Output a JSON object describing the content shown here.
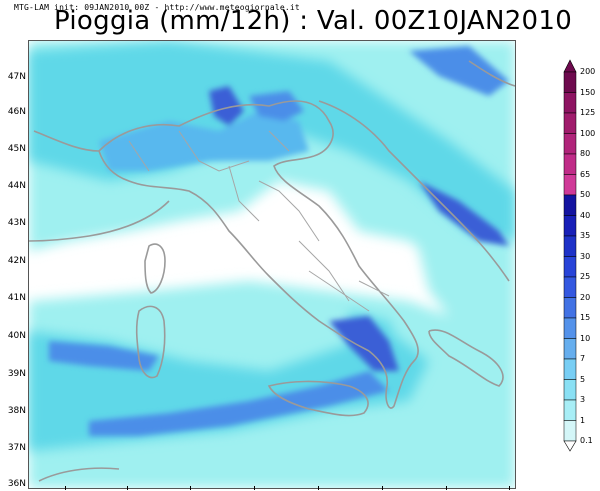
{
  "header": {
    "subtitle": "MTG-LAM init: 09JAN2010 00Z - http://www.meteogiornale.it",
    "title": "Pioggia (mm/12h) : Val. 00Z10JAN2010"
  },
  "map": {
    "latitude_labels": [
      "47N",
      "46N",
      "45N",
      "44N",
      "43N",
      "42N",
      "41N",
      "40N",
      "39N",
      "38N",
      "37N",
      "36N"
    ],
    "colors": {
      "land_outline": "#9a9a9a",
      "light_cyan": "#9ff0f0",
      "mid_cyan": "#5fd8e8",
      "light_blue": "#58b8ee",
      "mid_blue": "#4c8ee8",
      "deep_blue": "#3a5fd6"
    }
  },
  "legend": {
    "values": [
      "200",
      "150",
      "125",
      "100",
      "80",
      "65",
      "50",
      "40",
      "35",
      "30",
      "25",
      "20",
      "15",
      "10",
      "7",
      "5",
      "3",
      "1",
      "0.1"
    ],
    "colors": [
      "#6e0a4e",
      "#8e1462",
      "#a01c6c",
      "#b0247a",
      "#c02c88",
      "#d03a98",
      "#1414a0",
      "#1820b8",
      "#1e32c8",
      "#2844d8",
      "#3458e0",
      "#4272e4",
      "#5492ea",
      "#66aeee",
      "#78cef4",
      "#8ae0f4",
      "#a8eef6",
      "#d4f6f8",
      "#ffffff"
    ]
  }
}
